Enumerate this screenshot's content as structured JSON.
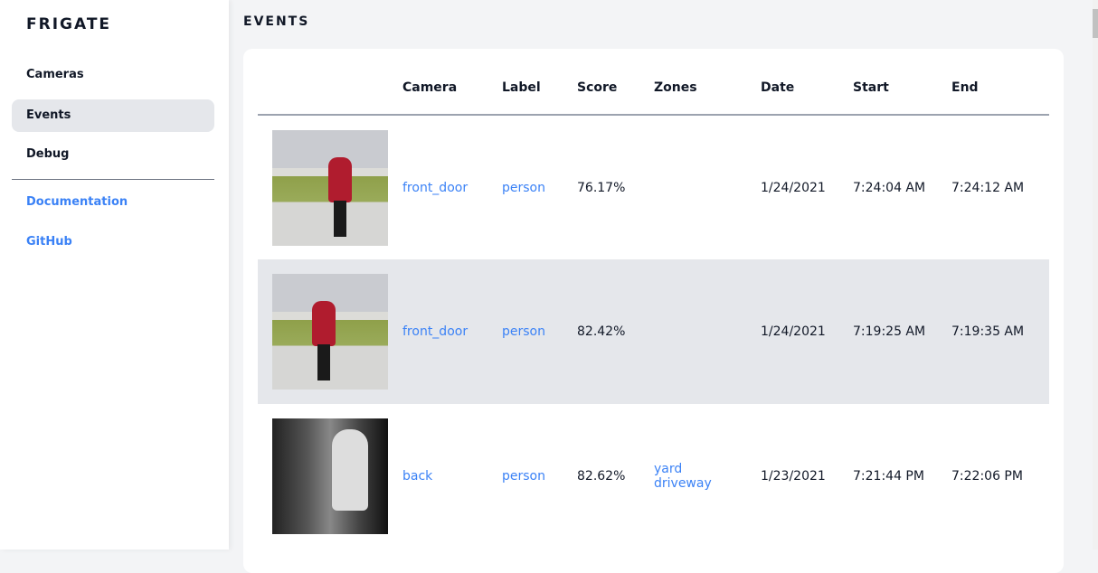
{
  "sidebar": {
    "logo": "FRIGATE",
    "items": [
      {
        "label": "Cameras"
      },
      {
        "label": "Events",
        "active": true
      },
      {
        "label": "Debug"
      }
    ],
    "links": [
      {
        "label": "Documentation"
      },
      {
        "label": "GitHub"
      }
    ]
  },
  "page": {
    "title": "EVENTS"
  },
  "table": {
    "headers": [
      "",
      "Camera",
      "Label",
      "Score",
      "Zones",
      "Date",
      "Start",
      "End"
    ],
    "rows": [
      {
        "thumbnail": "person walking dog in red coat",
        "camera": "front_door",
        "label": "person",
        "score": "76.17%",
        "zones": [
          "",
          ""
        ],
        "date": "1/24/2021",
        "start": "7:24:04 AM",
        "end": "7:24:12 AM"
      },
      {
        "thumbnail": "person walking dog in red coat",
        "camera": "front_door",
        "label": "person",
        "score": "82.42%",
        "zones": [
          "",
          ""
        ],
        "date": "1/24/2021",
        "start": "7:19:25 AM",
        "end": "7:19:35 AM"
      },
      {
        "thumbnail": "night person at back",
        "camera": "back",
        "label": "person",
        "score": "82.62%",
        "zones": [
          "yard",
          "driveway"
        ],
        "date": "1/23/2021",
        "start": "7:21:44 PM",
        "end": "7:22:06 PM"
      }
    ]
  },
  "colors": {
    "accent": "#3b82f6",
    "active_bg": "#e5e7eb",
    "page_bg": "#f3f4f6"
  }
}
